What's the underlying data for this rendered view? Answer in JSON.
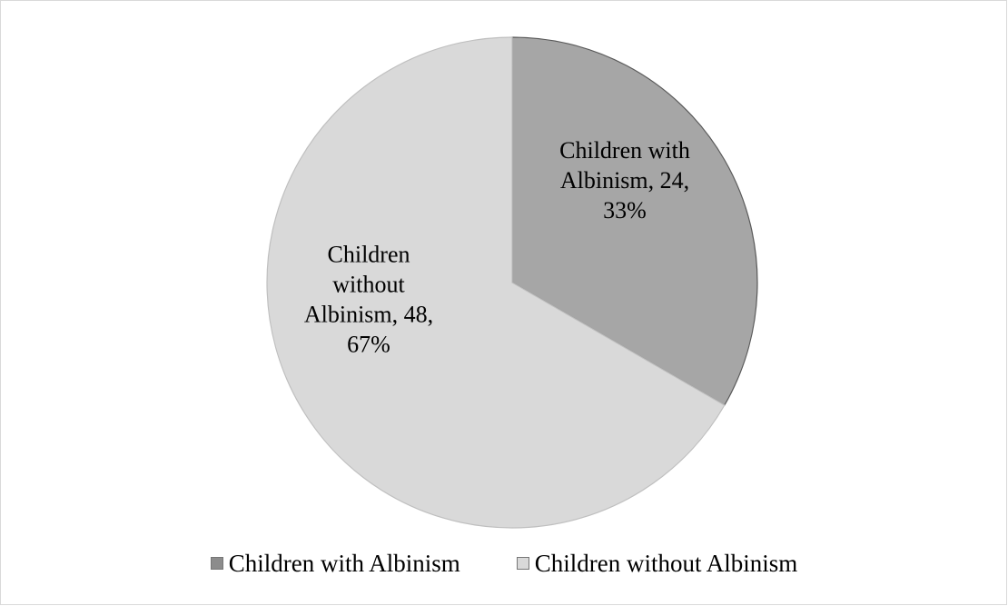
{
  "chart_data": {
    "type": "pie",
    "title": "",
    "start_angle_deg": 0,
    "direction": "clockwise",
    "slices": [
      {
        "name": "Children with Albinism",
        "value": 24,
        "percent": "33%",
        "color": "#a6a6a6",
        "label_lines": [
          "Children with",
          "Albinism, 24,",
          "33%"
        ]
      },
      {
        "name": "Children without Albinism",
        "value": 48,
        "percent": "67%",
        "color": "#d9d9d9",
        "label_lines": [
          "Children",
          "without",
          "Albinism, 48,",
          "67%"
        ]
      }
    ],
    "legend": {
      "position": "bottom",
      "items": [
        {
          "label": "Children with Albinism",
          "color": "#8c8c8c"
        },
        {
          "label": "Children without Albinism",
          "color": "#d9d9d9"
        }
      ]
    }
  }
}
